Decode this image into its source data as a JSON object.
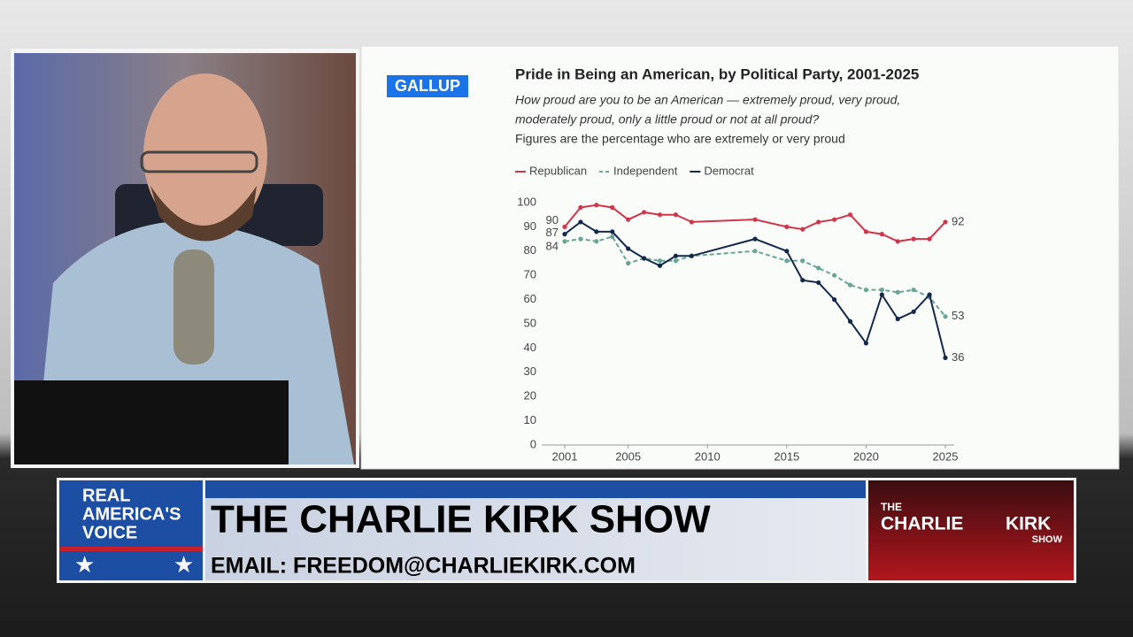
{
  "chart_data": {
    "type": "line",
    "logo": "GALLUP",
    "title": "Pride in Being an American, by Political Party, 2001-2025",
    "subtitle": [
      "How proud are you to be an American — extremely proud, very proud,",
      "moderately proud, only a little proud or not at all proud?"
    ],
    "note": "Figures are the percentage who are extremely or very proud",
    "x": [
      2001,
      2002,
      2003,
      2004,
      2005,
      2006,
      2007,
      2008,
      2009,
      2013,
      2015,
      2016,
      2017,
      2018,
      2019,
      2020,
      2021,
      2022,
      2023,
      2024,
      2025
    ],
    "series": [
      {
        "name": "Republican",
        "color": "#d0354a",
        "dashed": false,
        "values": [
          90,
          98,
          99,
          98,
          93,
          96,
          95,
          95,
          92,
          93,
          90,
          89,
          92,
          93,
          95,
          88,
          87,
          84,
          85,
          85,
          92
        ]
      },
      {
        "name": "Independent",
        "color": "#6aa596",
        "dashed": true,
        "values": [
          84,
          85,
          84,
          86,
          75,
          77,
          76,
          76,
          78,
          80,
          76,
          76,
          73,
          70,
          66,
          64,
          64,
          63,
          64,
          61,
          53
        ]
      },
      {
        "name": "Democrat",
        "color": "#14284b",
        "dashed": false,
        "values": [
          87,
          92,
          88,
          88,
          81,
          77,
          74,
          78,
          78,
          85,
          80,
          68,
          67,
          60,
          51,
          42,
          62,
          52,
          55,
          62,
          36
        ]
      }
    ],
    "xlim": [
      2001,
      2025
    ],
    "xticks": [
      2001,
      2005,
      2010,
      2015,
      2020,
      2025
    ],
    "ylim": [
      0,
      100
    ],
    "yticks": [
      0,
      10,
      20,
      30,
      40,
      50,
      60,
      70,
      80,
      90,
      100
    ],
    "legend": "top-left"
  },
  "banner": {
    "network": [
      "REAL",
      "AMERICA'S",
      "VOICE"
    ],
    "show": "THE CHARLIE KIRK SHOW",
    "email": "EMAIL: FREEDOM@CHARLIEKIRK.COM",
    "show_logo": [
      "THE",
      "CHARLIE",
      "KIRK",
      "SHOW"
    ]
  }
}
